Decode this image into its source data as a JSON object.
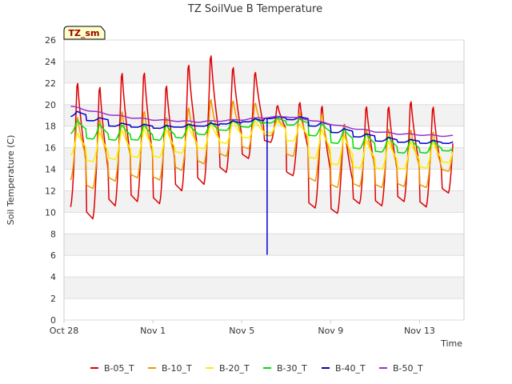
{
  "chart_data": {
    "type": "line",
    "title": "TZ SoilVue B Temperature",
    "xlabel": "Time",
    "ylabel": "Soil Temperature (C)",
    "site_tag": "TZ_sm",
    "xlim": [
      0,
      18
    ],
    "ylim": [
      0,
      26
    ],
    "yticks": [
      0,
      2,
      4,
      6,
      8,
      10,
      12,
      14,
      16,
      18,
      20,
      22,
      24,
      26
    ],
    "xticks": [
      {
        "day": 0,
        "label": "Oct 28"
      },
      {
        "day": 4,
        "label": "Nov 1"
      },
      {
        "day": 8,
        "label": "Nov 5"
      },
      {
        "day": 12,
        "label": "Nov 9"
      },
      {
        "day": 16,
        "label": "Nov 13"
      }
    ],
    "grid": true,
    "legend_position": "bottom",
    "data_start_day": 0.3,
    "data_end_day": 17.5,
    "series": [
      {
        "name": "B-05_T",
        "color": "#dd0000",
        "amplitude": 0.8,
        "daily_min": [
          10.5,
          9.4,
          10.6,
          11.0,
          10.8,
          12.0,
          12.6,
          13.7,
          15.0,
          16.5,
          13.4,
          10.4,
          9.9,
          10.8,
          10.6,
          11.0,
          10.5,
          11.8
        ],
        "daily_max": [
          23.0,
          22.7,
          24.0,
          24.0,
          22.7,
          24.7,
          25.6,
          24.3,
          23.7,
          20.2,
          20.8,
          20.7,
          18.9,
          20.6,
          20.6,
          21.1,
          20.6,
          20.6
        ]
      },
      {
        "name": "B-10_T",
        "color": "#ee9900",
        "amplitude": 0.6,
        "daily_min": [
          13.0,
          12.2,
          12.9,
          13.2,
          13.0,
          13.9,
          14.5,
          15.2,
          15.9,
          17.1,
          15.2,
          12.9,
          12.3,
          12.4,
          12.3,
          12.4,
          12.3,
          13.8
        ],
        "daily_max": [
          19.3,
          19.2,
          19.9,
          19.9,
          19.3,
          20.2,
          21.0,
          20.8,
          20.5,
          18.9,
          19.6,
          19.7,
          18.6,
          18.2,
          18.2,
          18.1,
          17.9,
          17.4
        ]
      },
      {
        "name": "B-20_T",
        "color": "#ffee00",
        "amplitude": 0.4,
        "daily_min": [
          15.3,
          14.7,
          14.9,
          15.1,
          15.1,
          15.5,
          15.9,
          16.4,
          16.9,
          17.4,
          16.6,
          15.0,
          14.4,
          14.1,
          14.0,
          14.0,
          14.1,
          14.6
        ],
        "daily_max": [
          17.5,
          17.6,
          17.9,
          18.0,
          17.9,
          18.2,
          18.5,
          18.7,
          18.6,
          18.5,
          18.3,
          17.9,
          17.3,
          16.9,
          16.8,
          16.7,
          16.7,
          16.6
        ]
      },
      {
        "name": "B-30_T",
        "color": "#00dd00",
        "amplitude": 0.3,
        "daily_min": [
          17.3,
          16.8,
          16.7,
          16.7,
          16.7,
          16.9,
          17.2,
          17.6,
          17.9,
          18.3,
          18.1,
          17.1,
          16.4,
          15.9,
          15.6,
          15.5,
          15.5,
          15.7
        ],
        "daily_max": [
          18.6,
          18.3,
          18.2,
          18.2,
          18.2,
          18.3,
          18.5,
          18.7,
          18.8,
          18.8,
          18.7,
          18.3,
          17.8,
          17.4,
          17.1,
          16.9,
          16.8,
          16.2
        ]
      },
      {
        "name": "B-40_T",
        "color": "#0000cc",
        "amplitude": 0.15,
        "daily_min": [
          18.9,
          18.5,
          18.0,
          17.9,
          17.8,
          17.9,
          18.0,
          18.2,
          18.4,
          18.7,
          18.6,
          18.0,
          17.4,
          17.0,
          16.6,
          16.5,
          16.4,
          16.4
        ],
        "daily_max": [
          19.4,
          18.8,
          18.3,
          18.2,
          18.1,
          18.2,
          18.3,
          18.5,
          18.7,
          18.9,
          18.9,
          18.4,
          17.8,
          17.3,
          17.0,
          16.8,
          16.7,
          16.7
        ],
        "dropout": {
          "day": 9.15,
          "value": 6.1
        }
      },
      {
        "name": "B-50_T",
        "color": "#9933cc",
        "amplitude": 0.05,
        "trend": [
          20.0,
          19.5,
          19.1,
          18.8,
          18.6,
          18.5,
          18.4,
          18.5,
          18.6,
          18.8,
          18.9,
          18.6,
          18.2,
          17.8,
          17.5,
          17.3,
          17.2,
          17.1
        ]
      }
    ]
  }
}
